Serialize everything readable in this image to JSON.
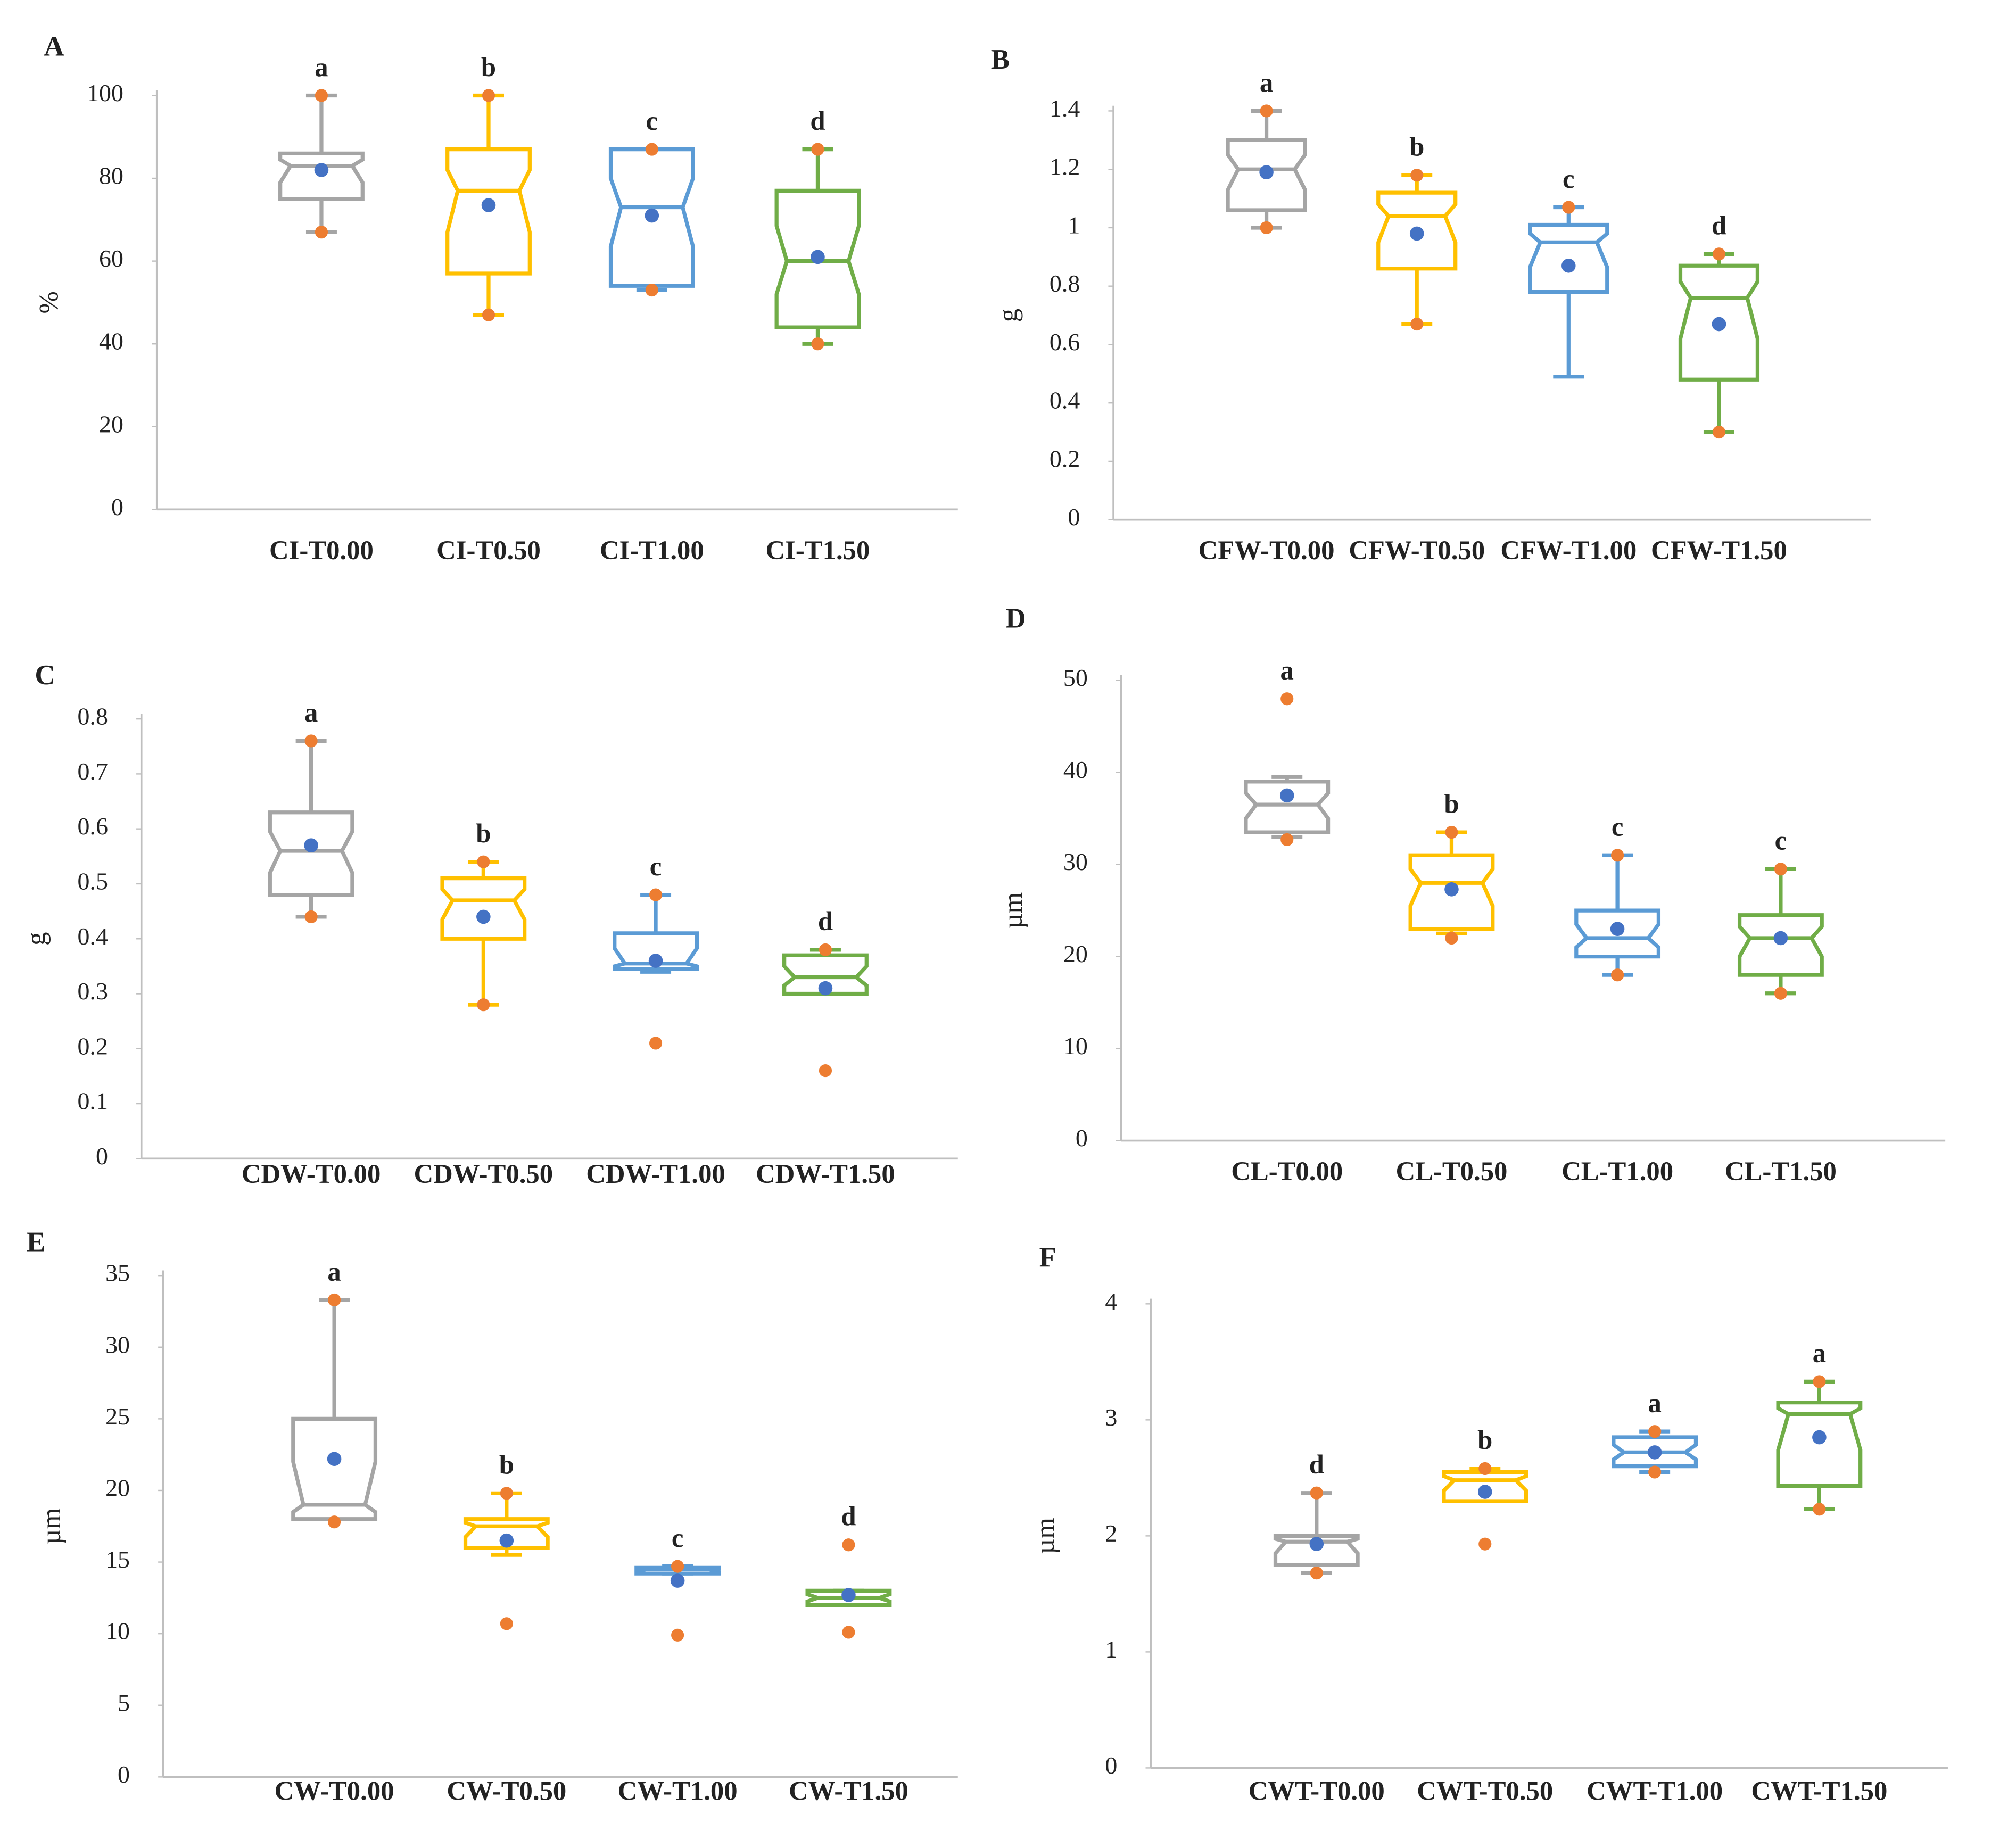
{
  "chart_data": [
    {
      "type": "box",
      "panel": "A",
      "ylabel": "%",
      "categories": [
        "CI-T0.00",
        "CI-T0.50",
        "CI-T1.00",
        "CI-T1.50"
      ],
      "colors": [
        "#a5a5a5",
        "#ffc000",
        "#5b9bd5",
        "#70ad47"
      ],
      "mean_color": "#4472c4",
      "point_color": "#ed7d31",
      "ylim": [
        0,
        100
      ],
      "yticks": [
        0,
        20,
        40,
        60,
        80,
        100
      ],
      "boxes": [
        {
          "min": 67,
          "q1": 75,
          "median": 83,
          "q3": 86,
          "max": 100,
          "mean": 82,
          "points": [
            67,
            100
          ]
        },
        {
          "min": 47,
          "q1": 57,
          "median": 77,
          "q3": 87,
          "max": 100,
          "mean": 73.5,
          "points": [
            47,
            100
          ]
        },
        {
          "min": 53,
          "q1": 54,
          "median": 73,
          "q3": 87,
          "max": 87,
          "mean": 71,
          "points": [
            53,
            87
          ]
        },
        {
          "min": 40,
          "q1": 44,
          "median": 60,
          "q3": 77,
          "max": 87,
          "mean": 61,
          "points": [
            40,
            87
          ]
        }
      ],
      "letters": [
        "a",
        "b",
        "c",
        "d"
      ]
    },
    {
      "type": "box",
      "panel": "B",
      "ylabel": "g",
      "categories": [
        "CFW-T0.00",
        "CFW-T0.50",
        "CFW-T1.00",
        "CFW-T1.50"
      ],
      "colors": [
        "#a5a5a5",
        "#ffc000",
        "#5b9bd5",
        "#70ad47"
      ],
      "mean_color": "#4472c4",
      "point_color": "#ed7d31",
      "ylim": [
        0,
        1.4
      ],
      "yticks": [
        0,
        0.2,
        0.4,
        0.6,
        0.8,
        1,
        1.2,
        1.4
      ],
      "boxes": [
        {
          "min": 1.0,
          "q1": 1.06,
          "median": 1.2,
          "q3": 1.3,
          "max": 1.4,
          "mean": 1.19,
          "points": [
            1.0,
            1.4
          ]
        },
        {
          "min": 0.67,
          "q1": 0.86,
          "median": 1.04,
          "q3": 1.12,
          "max": 1.18,
          "mean": 0.98,
          "points": [
            0.67,
            1.18
          ]
        },
        {
          "min": 0.49,
          "q1": 0.78,
          "median": 0.95,
          "q3": 1.01,
          "max": 1.07,
          "mean": 0.87,
          "points": [
            1.07
          ]
        },
        {
          "min": 0.3,
          "q1": 0.48,
          "median": 0.76,
          "q3": 0.87,
          "max": 0.91,
          "mean": 0.67,
          "points": [
            0.3,
            0.91
          ]
        }
      ],
      "letters": [
        "a",
        "b",
        "c",
        "d"
      ]
    },
    {
      "type": "box",
      "panel": "C",
      "ylabel": "g",
      "categories": [
        "CDW-T0.00",
        "CDW-T0.50",
        "CDW-T1.00",
        "CDW-T1.50"
      ],
      "colors": [
        "#a5a5a5",
        "#ffc000",
        "#5b9bd5",
        "#70ad47"
      ],
      "mean_color": "#4472c4",
      "point_color": "#ed7d31",
      "ylim": [
        0,
        0.8
      ],
      "yticks": [
        0,
        0.1,
        0.2,
        0.3,
        0.4,
        0.5,
        0.6,
        0.7,
        0.8
      ],
      "boxes": [
        {
          "min": 0.44,
          "q1": 0.48,
          "median": 0.56,
          "q3": 0.63,
          "max": 0.76,
          "mean": 0.57,
          "points": [
            0.44,
            0.76
          ]
        },
        {
          "min": 0.28,
          "q1": 0.4,
          "median": 0.47,
          "q3": 0.51,
          "max": 0.54,
          "mean": 0.44,
          "points": [
            0.28,
            0.54
          ]
        },
        {
          "min": 0.34,
          "q1": 0.345,
          "median": 0.355,
          "q3": 0.41,
          "max": 0.48,
          "mean": 0.36,
          "points": [
            0.21,
            0.48
          ]
        },
        {
          "min": 0.3,
          "q1": 0.3,
          "median": 0.33,
          "q3": 0.37,
          "max": 0.38,
          "mean": 0.31,
          "points": [
            0.16,
            0.38
          ]
        }
      ],
      "letters": [
        "a",
        "b",
        "c",
        "d"
      ]
    },
    {
      "type": "box",
      "panel": "D",
      "ylabel": "µm",
      "categories": [
        "CL-T0.00",
        "CL-T0.50",
        "CL-T1.00",
        "CL-T1.50"
      ],
      "colors": [
        "#a5a5a5",
        "#ffc000",
        "#5b9bd5",
        "#70ad47"
      ],
      "mean_color": "#4472c4",
      "point_color": "#ed7d31",
      "ylim": [
        0,
        50
      ],
      "yticks": [
        0,
        10,
        20,
        30,
        40,
        50
      ],
      "boxes": [
        {
          "min": 33,
          "q1": 33.5,
          "median": 36.5,
          "q3": 39,
          "max": 39.5,
          "mean": 37.5,
          "points": [
            32.7,
            48
          ]
        },
        {
          "min": 22.5,
          "q1": 23,
          "median": 28,
          "q3": 31,
          "max": 33.5,
          "mean": 27.3,
          "points": [
            22,
            33.5
          ]
        },
        {
          "min": 18,
          "q1": 20,
          "median": 22,
          "q3": 25,
          "max": 31,
          "mean": 23,
          "points": [
            18,
            31
          ]
        },
        {
          "min": 16,
          "q1": 18,
          "median": 22,
          "q3": 24.5,
          "max": 29.5,
          "mean": 22,
          "points": [
            16,
            29.5
          ]
        }
      ],
      "letters": [
        "a",
        "b",
        "c",
        "c"
      ]
    },
    {
      "type": "box",
      "panel": "E",
      "ylabel": "µm",
      "categories": [
        "CW-T0.00",
        "CW-T0.50",
        "CW-T1.00",
        "CW-T1.50"
      ],
      "colors": [
        "#a5a5a5",
        "#ffc000",
        "#5b9bd5",
        "#70ad47"
      ],
      "mean_color": "#4472c4",
      "point_color": "#ed7d31",
      "ylim": [
        0,
        35
      ],
      "yticks": [
        0,
        5,
        10,
        15,
        20,
        25,
        30,
        35
      ],
      "boxes": [
        {
          "min": 18,
          "q1": 18,
          "median": 19,
          "q3": 25,
          "max": 33.3,
          "mean": 22.2,
          "points": [
            17.8,
            33.3
          ]
        },
        {
          "min": 15.5,
          "q1": 16,
          "median": 17.5,
          "q3": 18,
          "max": 19.8,
          "mean": 16.5,
          "points": [
            10.7,
            19.8
          ]
        },
        {
          "min": 14.2,
          "q1": 14.2,
          "median": 14.5,
          "q3": 14.6,
          "max": 14.7,
          "mean": 13.7,
          "points": [
            9.9,
            14.7
          ]
        },
        {
          "min": 12,
          "q1": 12,
          "median": 12.5,
          "q3": 13,
          "max": 13,
          "mean": 12.7,
          "points": [
            10.1,
            16.2
          ]
        }
      ],
      "letters": [
        "a",
        "b",
        "c",
        "d"
      ]
    },
    {
      "type": "box",
      "panel": "F",
      "ylabel": "µm",
      "categories": [
        "CWT-T0.00",
        "CWT-T0.50",
        "CWT-T1.00",
        "CWT-T1.50"
      ],
      "colors": [
        "#a5a5a5",
        "#ffc000",
        "#5b9bd5",
        "#70ad47"
      ],
      "mean_color": "#4472c4",
      "point_color": "#ed7d31",
      "ylim": [
        0,
        4
      ],
      "yticks": [
        0,
        1,
        2,
        3,
        4
      ],
      "boxes": [
        {
          "min": 1.68,
          "q1": 1.75,
          "median": 1.95,
          "q3": 2.0,
          "max": 2.37,
          "mean": 1.93,
          "points": [
            1.68,
            2.37
          ]
        },
        {
          "min": 2.3,
          "q1": 2.3,
          "median": 2.48,
          "q3": 2.55,
          "max": 2.58,
          "mean": 2.38,
          "points": [
            1.93,
            2.58
          ]
        },
        {
          "min": 2.55,
          "q1": 2.6,
          "median": 2.72,
          "q3": 2.85,
          "max": 2.9,
          "mean": 2.72,
          "points": [
            2.55,
            2.9
          ]
        },
        {
          "min": 2.23,
          "q1": 2.43,
          "median": 3.05,
          "q3": 3.15,
          "max": 3.33,
          "mean": 2.85,
          "points": [
            2.23,
            3.33
          ]
        }
      ],
      "letters": [
        "d",
        "b",
        "a",
        "a"
      ]
    }
  ]
}
